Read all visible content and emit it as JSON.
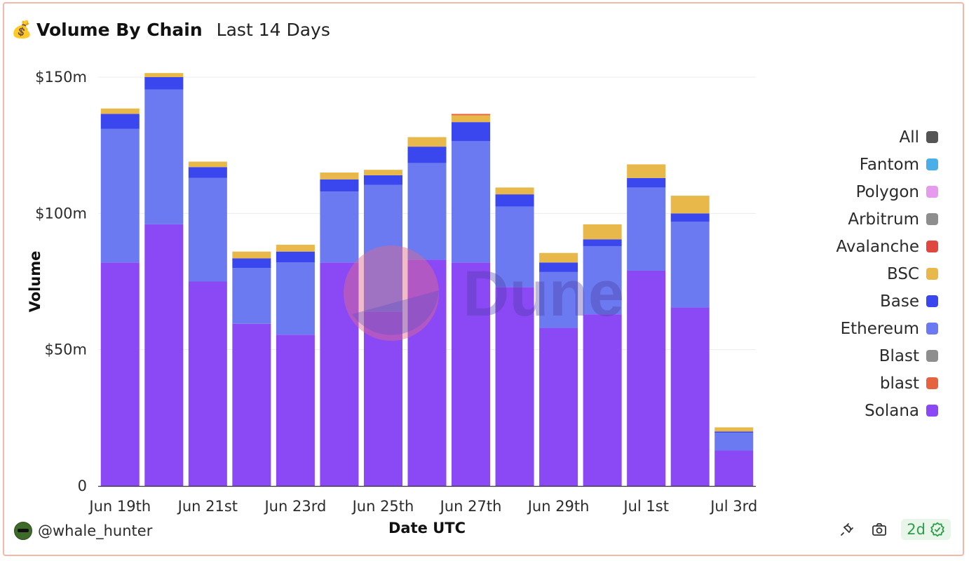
{
  "header": {
    "emoji": "💰",
    "title": "Volume By Chain",
    "subtitle": "Last 14 Days"
  },
  "chart_data": {
    "type": "bar",
    "stacked": true,
    "xlabel": "Date UTC",
    "ylabel": "Volume",
    "ylim": [
      0,
      150
    ],
    "yticks": [
      {
        "value": 0,
        "label": "0"
      },
      {
        "value": 50,
        "label": "$50m"
      },
      {
        "value": 100,
        "label": "$100m"
      },
      {
        "value": 150,
        "label": "$150m"
      }
    ],
    "categories": [
      "Jun 19th",
      "Jun 20th",
      "Jun 21st",
      "Jun 22nd",
      "Jun 23rd",
      "Jun 24th",
      "Jun 25th",
      "Jun 26th",
      "Jun 27th",
      "Jun 28th",
      "Jun 29th",
      "Jun 30th",
      "Jul 1st",
      "Jul 2nd",
      "Jul 3rd"
    ],
    "xtick_labels": [
      "Jun 19th",
      "Jun 21st",
      "Jun 23rd",
      "Jun 25th",
      "Jun 27th",
      "Jun 29th",
      "Jul 1st",
      "Jul 3rd"
    ],
    "bar_categories": [
      "Jun 19th",
      "Jun 20th",
      "Jun 21st",
      "Jun 22nd",
      "Jun 23rd",
      "Jun 24th",
      "Jun 25th",
      "Jun 26th",
      "Jun 27th",
      "Jun 28th",
      "Jun 29th",
      "Jun 30th",
      "Jul 1st",
      "Jul 2nd",
      "Jul 3rd"
    ],
    "series": [
      {
        "name": "Solana",
        "color": "#8b49f5",
        "values": [
          82,
          96,
          75,
          59.5,
          55.5,
          82,
          64,
          83,
          82,
          73,
          58,
          63,
          79,
          65.5,
          13
        ]
      },
      {
        "name": "Ethereum",
        "color": "#6b7af0",
        "values": [
          49,
          49.5,
          38,
          20.5,
          26.5,
          26,
          46.5,
          35.5,
          44.5,
          29.5,
          20.5,
          25,
          30.5,
          31.5,
          6.5
        ]
      },
      {
        "name": "Base",
        "color": "#3a47ee",
        "values": [
          5.5,
          4.5,
          4,
          3.5,
          4,
          4.5,
          3.5,
          6,
          7,
          4.5,
          3.5,
          2.5,
          3.5,
          3,
          0.5
        ]
      },
      {
        "name": "BSC",
        "color": "#e8b84a",
        "values": [
          2,
          1.5,
          2,
          2.5,
          2.5,
          2.5,
          2,
          3.5,
          2.5,
          2.5,
          3.5,
          5.5,
          5,
          6.5,
          1.5
        ]
      },
      {
        "name": "blast",
        "color": "#e5633f",
        "values": [
          0,
          0,
          0,
          0,
          0,
          0,
          0,
          0,
          0.5,
          0,
          0,
          0,
          0,
          0,
          0
        ]
      }
    ],
    "legend_position": "right",
    "grid": true
  },
  "legend": [
    {
      "label": "All",
      "color": "#555555"
    },
    {
      "label": "Fantom",
      "color": "#4aaee8"
    },
    {
      "label": "Polygon",
      "color": "#e79bed"
    },
    {
      "label": "Arbitrum",
      "color": "#8e8e8e"
    },
    {
      "label": "Avalanche",
      "color": "#e0473f"
    },
    {
      "label": "BSC",
      "color": "#e8b84a"
    },
    {
      "label": "Base",
      "color": "#3a47ee"
    },
    {
      "label": "Ethereum",
      "color": "#6b7af0"
    },
    {
      "label": "Blast",
      "color": "#8e8e8e"
    },
    {
      "label": "blast",
      "color": "#e5633f"
    },
    {
      "label": "Solana",
      "color": "#8b49f5"
    }
  ],
  "footer": {
    "username": "@whale_hunter",
    "age_badge": "2d",
    "icons": [
      "chain-icon",
      "camera-icon",
      "check-circle-icon"
    ]
  }
}
